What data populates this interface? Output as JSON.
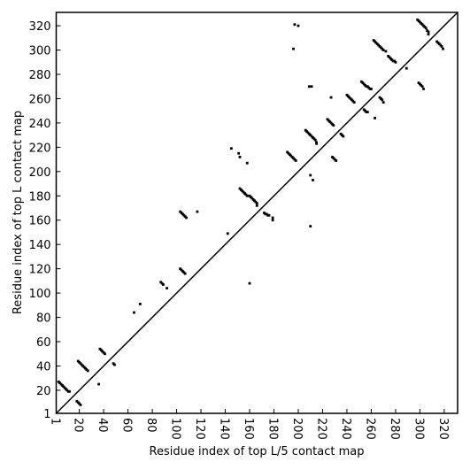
{
  "chart_data": {
    "type": "scatter",
    "xlabel": "Residue index of top L/5 contact map",
    "ylabel": "Residue index of top L contact map",
    "xlim": [
      1,
      331
    ],
    "ylim": [
      1,
      331
    ],
    "xticks": [
      1,
      20,
      40,
      60,
      80,
      100,
      120,
      140,
      160,
      180,
      200,
      220,
      240,
      260,
      280,
      300,
      320
    ],
    "yticks": [
      1,
      20,
      40,
      60,
      80,
      100,
      120,
      140,
      160,
      180,
      200,
      220,
      240,
      260,
      280,
      300,
      320
    ],
    "color": "#000000",
    "x": [
      3,
      4,
      5,
      6,
      7,
      8,
      9,
      10,
      11,
      12,
      18,
      19,
      20,
      21,
      19,
      20,
      21,
      22,
      23,
      24,
      25,
      26,
      27,
      37,
      38,
      39,
      40,
      41,
      36,
      48,
      49,
      65,
      70,
      87,
      88,
      89,
      92,
      103,
      104,
      105,
      106,
      107,
      103,
      104,
      105,
      106,
      107,
      108,
      117,
      142,
      145,
      151,
      152,
      158,
      152,
      153,
      154,
      155,
      156,
      157,
      158,
      160,
      161,
      162,
      163,
      164,
      165,
      166,
      166,
      160,
      172,
      173,
      174,
      175,
      176,
      179,
      179,
      191,
      192,
      193,
      194,
      195,
      196,
      197,
      198,
      197,
      200,
      196,
      206,
      207,
      208,
      209,
      210,
      211,
      212,
      213,
      214,
      215,
      215,
      209,
      211,
      210,
      212,
      210,
      224,
      225,
      226,
      227,
      228,
      229,
      228,
      229,
      230,
      231,
      235,
      236,
      237,
      227,
      240,
      241,
      242,
      243,
      244,
      245,
      246,
      252,
      253,
      254,
      255,
      256,
      257,
      258,
      259,
      260,
      254,
      255,
      256,
      257,
      263,
      267,
      268,
      269,
      270,
      262,
      263,
      264,
      265,
      266,
      267,
      268,
      269,
      270,
      272,
      274,
      275,
      276,
      277,
      278,
      279,
      280,
      289,
      299,
      300,
      301,
      302,
      303,
      298,
      299,
      300,
      301,
      302,
      303,
      304,
      305,
      306,
      307,
      307,
      314,
      315,
      316,
      317,
      318,
      319
    ],
    "values": [
      27,
      26,
      25,
      24,
      23,
      22,
      21,
      20,
      19,
      19,
      11,
      10,
      9,
      8,
      44,
      43,
      42,
      41,
      40,
      39,
      38,
      37,
      36,
      54,
      53,
      52,
      51,
      50,
      25,
      42,
      41,
      84,
      91,
      109,
      108,
      107,
      104,
      120,
      119,
      118,
      117,
      116,
      167,
      166,
      165,
      164,
      163,
      162,
      167,
      149,
      219,
      215,
      212,
      207,
      186,
      185,
      184,
      183,
      182,
      181,
      180,
      180,
      179,
      178,
      177,
      176,
      175,
      174,
      172,
      108,
      166,
      165,
      165,
      164,
      164,
      162,
      160,
      216,
      215,
      214,
      213,
      212,
      211,
      210,
      209,
      321,
      320,
      301,
      234,
      233,
      232,
      231,
      230,
      229,
      228,
      227,
      226,
      224,
      223,
      270,
      270,
      197,
      193,
      155,
      243,
      242,
      241,
      240,
      239,
      238,
      212,
      211,
      210,
      209,
      231,
      230,
      229,
      261,
      263,
      262,
      261,
      260,
      259,
      258,
      257,
      274,
      273,
      272,
      271,
      270,
      270,
      269,
      268,
      268,
      251,
      250,
      249,
      249,
      244,
      261,
      260,
      259,
      257,
      308,
      307,
      306,
      305,
      304,
      303,
      302,
      301,
      300,
      299,
      295,
      294,
      293,
      292,
      291,
      291,
      290,
      285,
      273,
      272,
      271,
      270,
      268,
      325,
      324,
      323,
      322,
      321,
      320,
      319,
      318,
      316,
      315,
      313,
      307,
      306,
      305,
      304,
      303,
      301
    ]
  }
}
